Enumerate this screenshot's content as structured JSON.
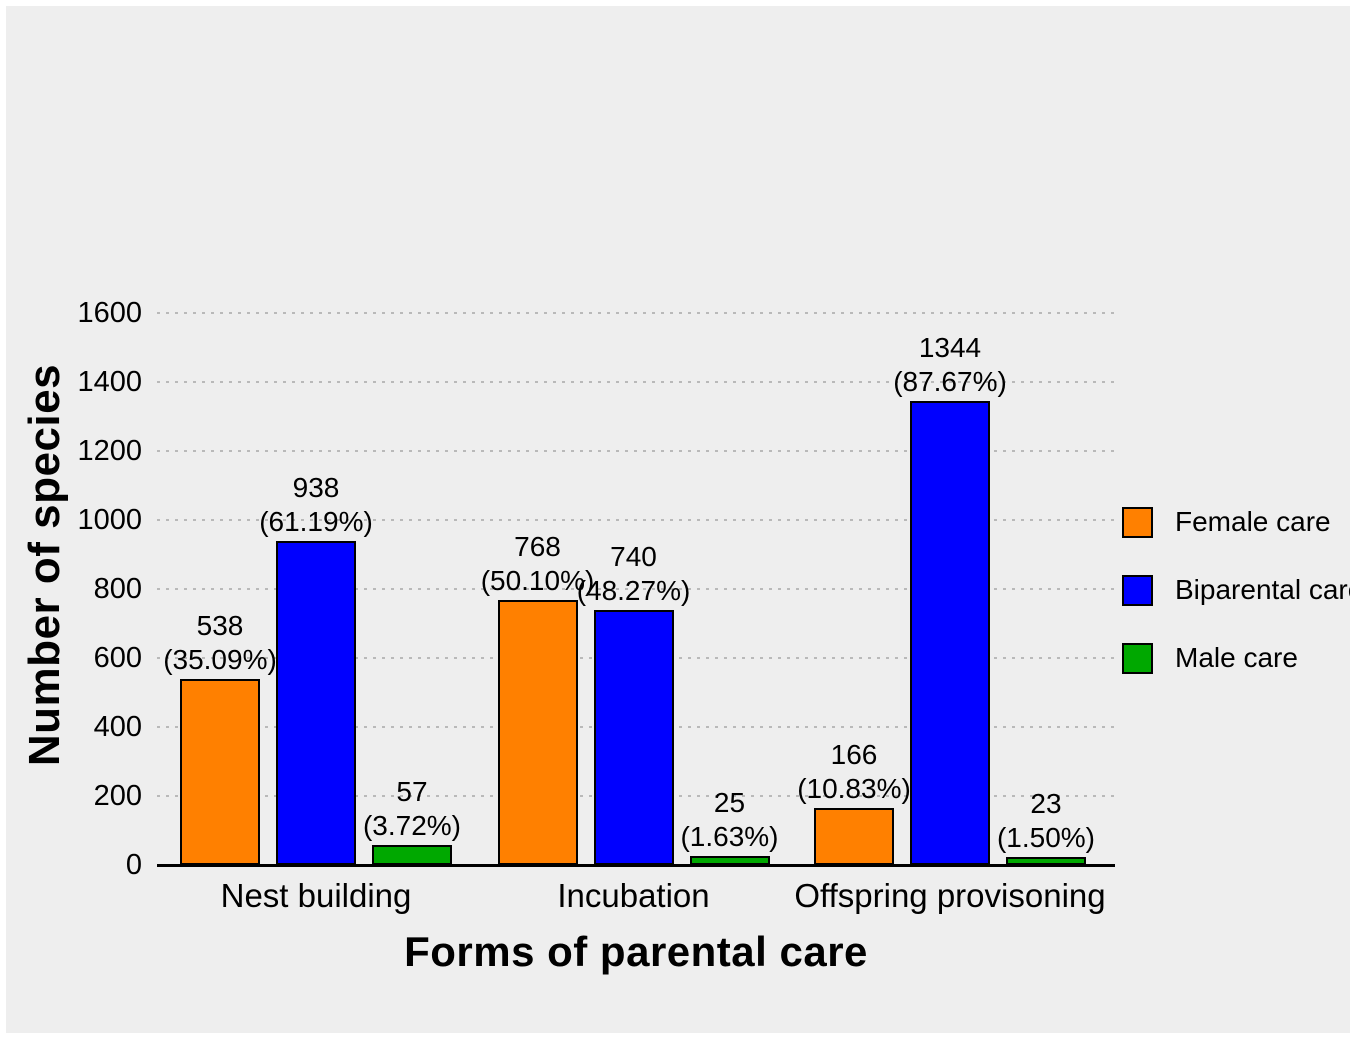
{
  "chart_data": {
    "type": "bar",
    "title": "",
    "xlabel": "Forms of parental care",
    "ylabel": "Number of species",
    "categories": [
      "Nest building",
      "Incubation",
      "Offspring provisoning"
    ],
    "series": [
      {
        "name": "Female care",
        "color": "#ff8000",
        "values": [
          538,
          768,
          166
        ],
        "percent_labels": [
          "(35.09%)",
          "(50.10%)",
          "(10.83%)"
        ]
      },
      {
        "name": "Biparental care",
        "color": "#0000ff",
        "values": [
          938,
          740,
          1344
        ],
        "percent_labels": [
          "(61.19%)",
          "(48.27%)",
          "(87.67%)"
        ]
      },
      {
        "name": "Male care",
        "color": "#00a800",
        "values": [
          57,
          25,
          23
        ],
        "percent_labels": [
          "(3.72%)",
          "(1.63%)",
          "(1.50%)"
        ]
      }
    ],
    "y_ticks": [
      0,
      200,
      400,
      600,
      800,
      1000,
      1200,
      1400,
      1600
    ],
    "ylim": [
      0,
      1600
    ],
    "grid": "horizontal-dotted",
    "legend_position": "right"
  },
  "colors": {
    "background": "#eeeeee",
    "grid": "#b9b9b9",
    "axis": "#000000",
    "bar_border": "#000000",
    "text": "#000000"
  }
}
